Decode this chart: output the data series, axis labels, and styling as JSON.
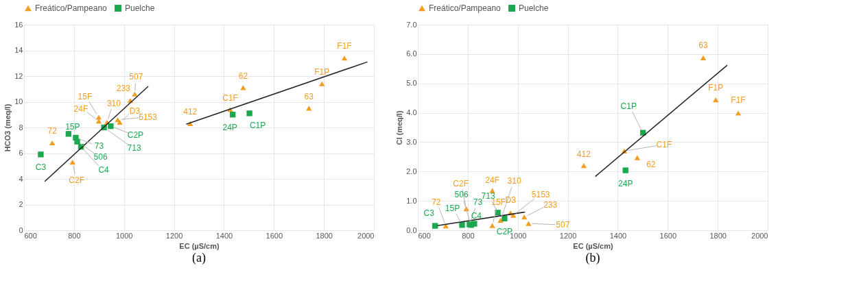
{
  "chart_data": [
    {
      "type": "scatter",
      "xlabel": "EC (µS/cm)",
      "ylabel": "HCO3 (meq/l)",
      "legend": "top",
      "grid": true,
      "xlim": [
        600,
        2000
      ],
      "xticks": [
        600,
        800,
        1000,
        1200,
        1400,
        1600,
        1800,
        2000
      ],
      "ylim": [
        0,
        16
      ],
      "yticks": [
        0,
        2,
        4,
        6,
        8,
        10,
        12,
        14,
        16
      ],
      "series": [
        {
          "name": "Freático/Pampeano",
          "color": "#f39c1f",
          "marker": "triangle",
          "x": [
            713,
            794,
            899,
            899,
            932,
            975,
            983,
            1025,
            1043,
            1265,
            1425,
            1477,
            1740,
            1792,
            1882
          ],
          "values": [
            6.8,
            5.3,
            8.8,
            8.5,
            8.4,
            8.6,
            8.4,
            10.1,
            10.6,
            8.3,
            9.4,
            11.1,
            9.5,
            11.4,
            13.4
          ]
        },
        {
          "name": "Puelche",
          "color": "#1aa84f",
          "marker": "square",
          "x": [
            667,
            778,
            807,
            813,
            828,
            920,
            947,
            1435,
            1502
          ],
          "values": [
            5.9,
            7.5,
            7.2,
            6.9,
            6.5,
            8.0,
            8.1,
            9.0,
            9.1
          ]
        },
        {
          "type": "line",
          "color": "#222222",
          "x": [
            683,
            1097
          ],
          "values": [
            3.8,
            11.2
          ]
        },
        {
          "type": "line",
          "color": "#222222",
          "x": [
            1249,
            1974
          ],
          "values": [
            8.25,
            13.1
          ]
        }
      ],
      "annotations": [
        "(a)",
        {
          "text": "72",
          "x": 713,
          "y": 6.8
        },
        {
          "text": "C2F",
          "x": 794,
          "y": 5.3
        },
        {
          "text": "15F",
          "x": 899,
          "y": 8.8
        },
        {
          "text": "24F",
          "x": 899,
          "y": 8.5
        },
        {
          "text": "310",
          "x": 932,
          "y": 8.4
        },
        {
          "text": "5153",
          "x": 975,
          "y": 8.6
        },
        {
          "text": "D3",
          "x": 983,
          "y": 8.4
        },
        {
          "text": "233",
          "x": 1025,
          "y": 10.1
        },
        {
          "text": "507",
          "x": 1043,
          "y": 10.6
        },
        {
          "text": "412",
          "x": 1265,
          "y": 8.3
        },
        {
          "text": "C1F",
          "x": 1425,
          "y": 9.4
        },
        {
          "text": "62",
          "x": 1477,
          "y": 11.1
        },
        {
          "text": "63",
          "x": 1740,
          "y": 9.5
        },
        {
          "text": "F1P",
          "x": 1792,
          "y": 11.4
        },
        {
          "text": "F1F",
          "x": 1882,
          "y": 13.4
        },
        {
          "text": "C3",
          "x": 667,
          "y": 5.9
        },
        {
          "text": "15P",
          "x": 778,
          "y": 7.5
        },
        {
          "text": "73",
          "x": 807,
          "y": 7.2
        },
        {
          "text": "506",
          "x": 813,
          "y": 6.9
        },
        {
          "text": "C4",
          "x": 828,
          "y": 6.5
        },
        {
          "text": "713",
          "x": 920,
          "y": 8.0
        },
        {
          "text": "C2P",
          "x": 947,
          "y": 8.1
        },
        {
          "text": "24P",
          "x": 1435,
          "y": 9.0
        },
        {
          "text": "C1P",
          "x": 1502,
          "y": 9.1
        }
      ]
    },
    {
      "type": "scatter",
      "xlabel": "EC (µS/cm)",
      "ylabel": "Cl (meq/l)",
      "legend": "top",
      "grid": true,
      "xlim": [
        600,
        2000
      ],
      "xticks": [
        600,
        800,
        1000,
        1200,
        1400,
        1600,
        1800,
        2000
      ],
      "ylim": [
        0,
        7
      ],
      "yticks": [
        {
          "value": 0,
          "label": "0.0"
        },
        {
          "value": 1,
          "label": "1.0"
        },
        {
          "value": 2,
          "label": "2.0"
        },
        {
          "value": 3,
          "label": "3.0"
        },
        {
          "value": 4,
          "label": "4.0"
        },
        {
          "value": 5,
          "label": "5.0"
        },
        {
          "value": 6,
          "label": "6.0"
        },
        {
          "value": 7,
          "label": "7.0"
        }
      ],
      "series": [
        {
          "name": "Freático/Pampeano",
          "color": "#f39c1f",
          "marker": "triangle",
          "x": [
            712,
            794,
            898,
            898,
            931,
            971,
            982,
            1026,
            1043,
            1264,
            1426,
            1478,
            1742,
            1792,
            1882
          ],
          "values": [
            0.15,
            0.73,
            1.35,
            0.16,
            0.34,
            0.59,
            0.51,
            0.45,
            0.23,
            2.2,
            2.7,
            2.47,
            5.87,
            4.44,
            3.99
          ]
        },
        {
          "name": "Puelche",
          "color": "#1aa84f",
          "marker": "square",
          "x": [
            669,
            777,
            807,
            813,
            826,
            920,
            947,
            1431,
            1501
          ],
          "values": [
            0.15,
            0.18,
            0.2,
            0.18,
            0.22,
            0.6,
            0.4,
            2.04,
            3.32
          ]
        },
        {
          "type": "line",
          "color": "#222222",
          "x": [
            678,
            1029
          ],
          "values": [
            0.16,
            0.62
          ]
        },
        {
          "type": "line",
          "color": "#222222",
          "x": [
            1310,
            1838
          ],
          "values": [
            1.83,
            5.62
          ]
        }
      ],
      "annotations": [
        "(b)",
        {
          "text": "72",
          "x": 712,
          "y": 0.15
        },
        {
          "text": "C2F",
          "x": 794,
          "y": 0.73
        },
        {
          "text": "24F",
          "x": 898,
          "y": 1.35
        },
        {
          "text": "15F",
          "x": 898,
          "y": 0.16
        },
        {
          "text": "310",
          "x": 931,
          "y": 0.34
        },
        {
          "text": "D3",
          "x": 971,
          "y": 0.59
        },
        {
          "text": "5153",
          "x": 982,
          "y": 0.51
        },
        {
          "text": "233",
          "x": 1026,
          "y": 0.45
        },
        {
          "text": "507",
          "x": 1043,
          "y": 0.23
        },
        {
          "text": "412",
          "x": 1264,
          "y": 2.2
        },
        {
          "text": "C1F",
          "x": 1426,
          "y": 2.7
        },
        {
          "text": "62",
          "x": 1478,
          "y": 2.47
        },
        {
          "text": "63",
          "x": 1742,
          "y": 5.87
        },
        {
          "text": "F1P",
          "x": 1792,
          "y": 4.44
        },
        {
          "text": "F1F",
          "x": 1882,
          "y": 3.99
        },
        {
          "text": "C3",
          "x": 669,
          "y": 0.15
        },
        {
          "text": "15P",
          "x": 777,
          "y": 0.18
        },
        {
          "text": "73",
          "x": 807,
          "y": 0.2
        },
        {
          "text": "506",
          "x": 813,
          "y": 0.18
        },
        {
          "text": "C4",
          "x": 826,
          "y": 0.22
        },
        {
          "text": "713",
          "x": 920,
          "y": 0.6
        },
        {
          "text": "C2P",
          "x": 947,
          "y": 0.4
        },
        {
          "text": "24P",
          "x": 1431,
          "y": 2.04
        },
        {
          "text": "C1P",
          "x": 1501,
          "y": 3.32
        }
      ]
    }
  ]
}
